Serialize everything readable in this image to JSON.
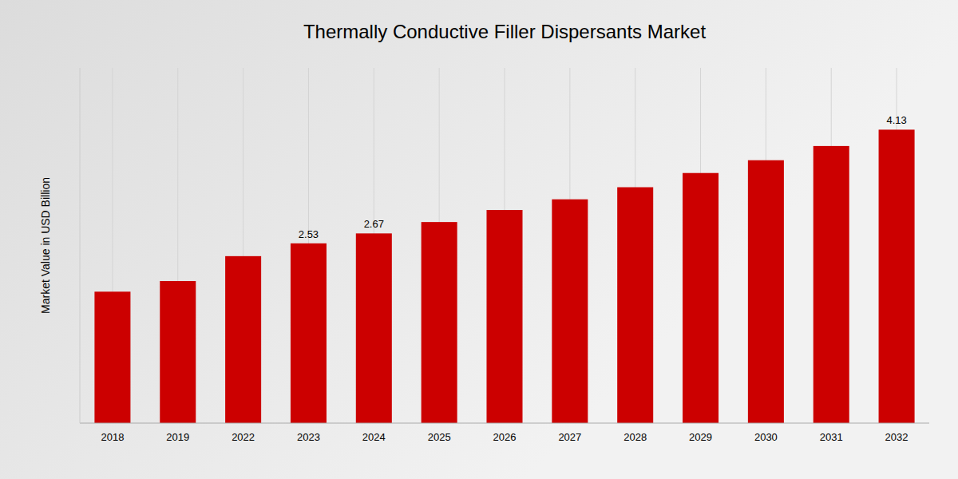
{
  "chart_data": {
    "type": "bar",
    "title": "Thermally Conductive Filler Dispersants Market",
    "y_label": "Market Value in USD Billion",
    "categories": [
      "2018",
      "2019",
      "2022",
      "2023",
      "2024",
      "2025",
      "2026",
      "2027",
      "2028",
      "2029",
      "2030",
      "2031",
      "2032"
    ],
    "values": [
      1.85,
      2.0,
      2.35,
      2.53,
      2.67,
      2.83,
      3.0,
      3.15,
      3.32,
      3.52,
      3.7,
      3.9,
      4.13
    ],
    "value_labels": [
      null,
      null,
      null,
      "2.53",
      "2.67",
      null,
      null,
      null,
      null,
      null,
      null,
      null,
      "4.13"
    ],
    "color": "#CC0000",
    "ylim": [
      0,
      5.0
    ],
    "grid": "x",
    "tick_labels": "x"
  }
}
